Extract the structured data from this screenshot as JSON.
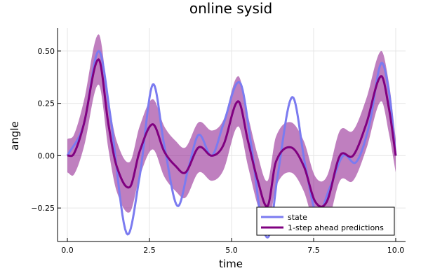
{
  "chart_data": {
    "type": "line",
    "title": "online sysid",
    "xlabel": "time",
    "ylabel": "angle",
    "xlim": [
      -0.3,
      10.3
    ],
    "ylim": [
      -0.41,
      0.61
    ],
    "xticks": [
      0,
      2.5,
      5,
      7.5,
      10
    ],
    "xtick_labels": [
      "0.0",
      "2.5",
      "5.0",
      "7.5",
      "10.0"
    ],
    "yticks": [
      -0.25,
      0,
      0.25,
      0.5
    ],
    "ytick_labels": [
      "−0.25",
      "0.00",
      "0.25",
      "0.50"
    ],
    "grid": true,
    "legend_position": "bottom-right",
    "series": [
      {
        "name": "state",
        "color": "#7b7bf0",
        "x": [
          0.0,
          0.5,
          0.95,
          1.3,
          1.8,
          2.2,
          2.6,
          2.95,
          3.35,
          3.7,
          4.0,
          4.4,
          4.75,
          5.25,
          5.6,
          5.9,
          6.15,
          6.4,
          6.85,
          7.25,
          7.6,
          8.0,
          8.4,
          8.8,
          9.2,
          9.55,
          9.8,
          10.0
        ],
        "y": [
          0.0,
          0.15,
          0.5,
          0.2,
          -0.37,
          -0.1,
          0.34,
          0.05,
          -0.24,
          -0.05,
          0.1,
          0.0,
          0.15,
          0.35,
          0.05,
          -0.3,
          -0.38,
          -0.1,
          0.28,
          -0.05,
          -0.28,
          -0.15,
          0.0,
          -0.03,
          0.15,
          0.44,
          0.3,
          0.0
        ]
      },
      {
        "name": "1-step ahead predictions",
        "color": "#800080",
        "x": [
          0.0,
          0.2,
          0.5,
          0.95,
          1.25,
          1.5,
          1.9,
          2.2,
          2.6,
          2.95,
          3.3,
          3.6,
          4.0,
          4.4,
          4.75,
          5.2,
          5.5,
          5.8,
          6.1,
          6.35,
          6.8,
          7.2,
          7.55,
          7.9,
          8.3,
          8.7,
          9.1,
          9.55,
          9.8,
          10.0
        ],
        "y": [
          0.0,
          0.01,
          0.15,
          0.46,
          0.15,
          -0.05,
          -0.15,
          0.02,
          0.15,
          0.02,
          -0.05,
          -0.08,
          0.04,
          0.0,
          0.05,
          0.26,
          0.07,
          -0.12,
          -0.24,
          -0.03,
          0.04,
          -0.05,
          -0.22,
          -0.22,
          0.0,
          0.0,
          0.15,
          0.38,
          0.22,
          0.0
        ]
      }
    ],
    "band": {
      "color": "#800080",
      "opacity": 0.5,
      "x": [
        0.0,
        0.2,
        0.5,
        0.95,
        1.25,
        1.5,
        1.9,
        2.2,
        2.6,
        2.95,
        3.3,
        3.6,
        4.0,
        4.4,
        4.75,
        5.2,
        5.5,
        5.8,
        6.1,
        6.35,
        6.8,
        7.2,
        7.55,
        7.9,
        8.3,
        8.7,
        9.1,
        9.55,
        9.8,
        10.0
      ],
      "upper": [
        0.08,
        0.1,
        0.26,
        0.58,
        0.27,
        0.07,
        -0.03,
        0.14,
        0.27,
        0.14,
        0.07,
        0.04,
        0.16,
        0.12,
        0.17,
        0.38,
        0.19,
        0.0,
        -0.12,
        0.09,
        0.16,
        0.07,
        -0.1,
        -0.1,
        0.12,
        0.12,
        0.27,
        0.5,
        0.34,
        0.08
      ],
      "lower": [
        -0.08,
        -0.09,
        0.04,
        0.34,
        0.03,
        -0.17,
        -0.27,
        -0.1,
        0.03,
        -0.1,
        -0.17,
        -0.2,
        -0.08,
        -0.12,
        -0.07,
        0.14,
        -0.05,
        -0.24,
        -0.36,
        -0.15,
        -0.08,
        -0.17,
        -0.34,
        -0.34,
        -0.12,
        -0.12,
        0.03,
        0.26,
        0.1,
        -0.08
      ]
    }
  }
}
